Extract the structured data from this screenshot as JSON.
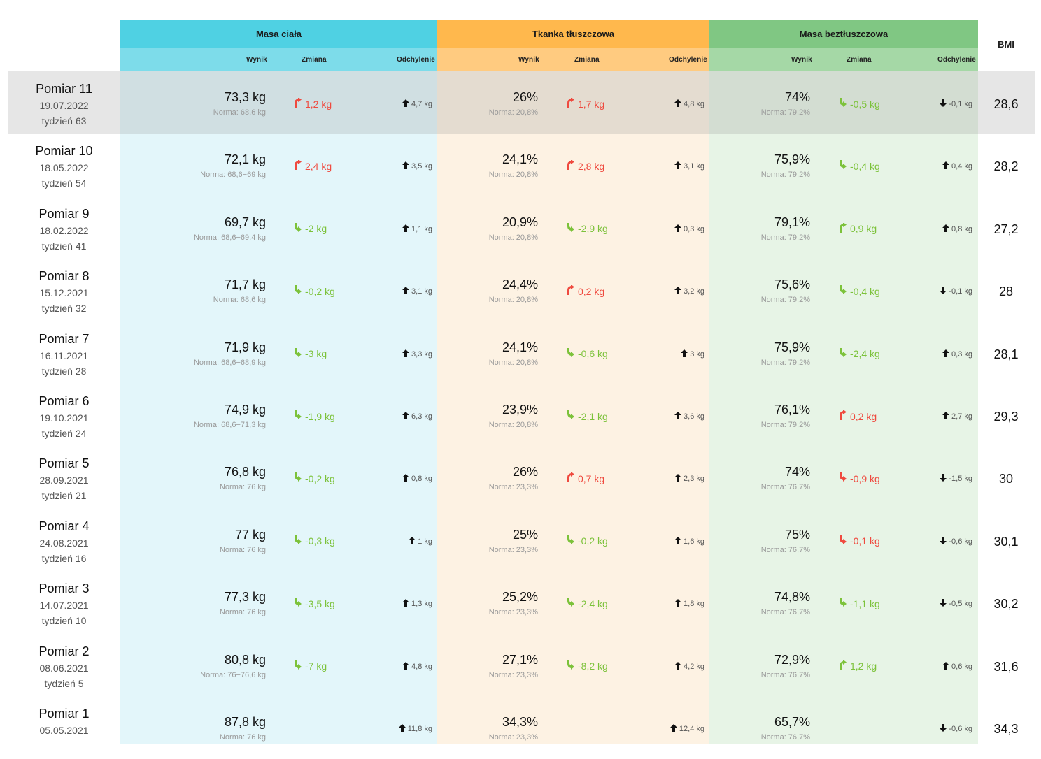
{
  "headers": {
    "body_mass": "Masa ciała",
    "fat_tissue": "Tkanka tłuszczowa",
    "lean_mass": "Masa beztłuszczowa",
    "bmi": "BMI",
    "result": "Wynik",
    "change": "Zmiana",
    "deviation": "Odchylenie"
  },
  "colors": {
    "blue_header": "#4fd1e3",
    "orange_header": "#ffb84d",
    "green_header": "#80c783",
    "change_bad": "#ef4a3f",
    "change_good": "#7cc23a"
  },
  "rows": [
    {
      "title": "Pomiar 11",
      "date": "19.07.2022",
      "week": "tydzień 63",
      "mass": {
        "value": "73,3 kg",
        "norm": "Norma: 68,6 kg",
        "change": "1,2 kg",
        "change_dir": "up",
        "change_tone": "bad",
        "dev": "4,7 kg",
        "dev_dir": "up"
      },
      "fat": {
        "value": "26%",
        "norm": "Norma: 20,8%",
        "change": "1,7 kg",
        "change_dir": "up",
        "change_tone": "bad",
        "dev": "4,8 kg",
        "dev_dir": "up"
      },
      "lean": {
        "value": "74%",
        "norm": "Norma: 79,2%",
        "change": "-0,5 kg",
        "change_dir": "down",
        "change_tone": "good",
        "dev": "-0,1 kg",
        "dev_dir": "down"
      },
      "bmi": "28,6"
    },
    {
      "title": "Pomiar 10",
      "date": "18.05.2022",
      "week": "tydzień 54",
      "mass": {
        "value": "72,1 kg",
        "norm": "Norma: 68,6−69 kg",
        "change": "2,4 kg",
        "change_dir": "up",
        "change_tone": "bad",
        "dev": "3,5 kg",
        "dev_dir": "up"
      },
      "fat": {
        "value": "24,1%",
        "norm": "Norma: 20,8%",
        "change": "2,8 kg",
        "change_dir": "up",
        "change_tone": "bad",
        "dev": "3,1 kg",
        "dev_dir": "up"
      },
      "lean": {
        "value": "75,9%",
        "norm": "Norma: 79,2%",
        "change": "-0,4 kg",
        "change_dir": "down",
        "change_tone": "good",
        "dev": "0,4 kg",
        "dev_dir": "up"
      },
      "bmi": "28,2"
    },
    {
      "title": "Pomiar 9",
      "date": "18.02.2022",
      "week": "tydzień 41",
      "mass": {
        "value": "69,7 kg",
        "norm": "Norma: 68,6−69,4 kg",
        "change": "-2 kg",
        "change_dir": "down",
        "change_tone": "good",
        "dev": "1,1 kg",
        "dev_dir": "up"
      },
      "fat": {
        "value": "20,9%",
        "norm": "Norma: 20,8%",
        "change": "-2,9 kg",
        "change_dir": "down",
        "change_tone": "good",
        "dev": "0,3 kg",
        "dev_dir": "up"
      },
      "lean": {
        "value": "79,1%",
        "norm": "Norma: 79,2%",
        "change": "0,9 kg",
        "change_dir": "up",
        "change_tone": "good",
        "dev": "0,8 kg",
        "dev_dir": "up"
      },
      "bmi": "27,2"
    },
    {
      "title": "Pomiar 8",
      "date": "15.12.2021",
      "week": "tydzień 32",
      "mass": {
        "value": "71,7 kg",
        "norm": "Norma: 68,6 kg",
        "change": "-0,2 kg",
        "change_dir": "down",
        "change_tone": "good",
        "dev": "3,1 kg",
        "dev_dir": "up"
      },
      "fat": {
        "value": "24,4%",
        "norm": "Norma: 20,8%",
        "change": "0,2 kg",
        "change_dir": "up",
        "change_tone": "bad",
        "dev": "3,2 kg",
        "dev_dir": "up"
      },
      "lean": {
        "value": "75,6%",
        "norm": "Norma: 79,2%",
        "change": "-0,4 kg",
        "change_dir": "down",
        "change_tone": "good",
        "dev": "-0,1 kg",
        "dev_dir": "down"
      },
      "bmi": "28"
    },
    {
      "title": "Pomiar 7",
      "date": "16.11.2021",
      "week": "tydzień 28",
      "mass": {
        "value": "71,9 kg",
        "norm": "Norma: 68,6−68,9 kg",
        "change": "-3 kg",
        "change_dir": "down",
        "change_tone": "good",
        "dev": "3,3 kg",
        "dev_dir": "up"
      },
      "fat": {
        "value": "24,1%",
        "norm": "Norma: 20,8%",
        "change": "-0,6 kg",
        "change_dir": "down",
        "change_tone": "good",
        "dev": "3 kg",
        "dev_dir": "up"
      },
      "lean": {
        "value": "75,9%",
        "norm": "Norma: 79,2%",
        "change": "-2,4 kg",
        "change_dir": "down",
        "change_tone": "good",
        "dev": "0,3 kg",
        "dev_dir": "up"
      },
      "bmi": "28,1"
    },
    {
      "title": "Pomiar 6",
      "date": "19.10.2021",
      "week": "tydzień 24",
      "mass": {
        "value": "74,9 kg",
        "norm": "Norma: 68,6−71,3 kg",
        "change": "-1,9 kg",
        "change_dir": "down",
        "change_tone": "good",
        "dev": "6,3 kg",
        "dev_dir": "up"
      },
      "fat": {
        "value": "23,9%",
        "norm": "Norma: 20,8%",
        "change": "-2,1 kg",
        "change_dir": "down",
        "change_tone": "good",
        "dev": "3,6 kg",
        "dev_dir": "up"
      },
      "lean": {
        "value": "76,1%",
        "norm": "Norma: 79,2%",
        "change": "0,2 kg",
        "change_dir": "up",
        "change_tone": "bad",
        "dev": "2,7 kg",
        "dev_dir": "up"
      },
      "bmi": "29,3"
    },
    {
      "title": "Pomiar 5",
      "date": "28.09.2021",
      "week": "tydzień 21",
      "mass": {
        "value": "76,8 kg",
        "norm": "Norma: 76 kg",
        "change": "-0,2 kg",
        "change_dir": "down",
        "change_tone": "good",
        "dev": "0,8 kg",
        "dev_dir": "up"
      },
      "fat": {
        "value": "26%",
        "norm": "Norma: 23,3%",
        "change": "0,7 kg",
        "change_dir": "up",
        "change_tone": "bad",
        "dev": "2,3 kg",
        "dev_dir": "up"
      },
      "lean": {
        "value": "74%",
        "norm": "Norma: 76,7%",
        "change": "-0,9 kg",
        "change_dir": "down",
        "change_tone": "bad",
        "dev": "-1,5 kg",
        "dev_dir": "down"
      },
      "bmi": "30"
    },
    {
      "title": "Pomiar 4",
      "date": "24.08.2021",
      "week": "tydzień 16",
      "mass": {
        "value": "77 kg",
        "norm": "Norma: 76 kg",
        "change": "-0,3 kg",
        "change_dir": "down",
        "change_tone": "good",
        "dev": "1 kg",
        "dev_dir": "up"
      },
      "fat": {
        "value": "25%",
        "norm": "Norma: 23,3%",
        "change": "-0,2 kg",
        "change_dir": "down",
        "change_tone": "good",
        "dev": "1,6 kg",
        "dev_dir": "up"
      },
      "lean": {
        "value": "75%",
        "norm": "Norma: 76,7%",
        "change": "-0,1 kg",
        "change_dir": "down",
        "change_tone": "bad",
        "dev": "-0,6 kg",
        "dev_dir": "down"
      },
      "bmi": "30,1"
    },
    {
      "title": "Pomiar 3",
      "date": "14.07.2021",
      "week": "tydzień 10",
      "mass": {
        "value": "77,3 kg",
        "norm": "Norma: 76 kg",
        "change": "-3,5 kg",
        "change_dir": "down",
        "change_tone": "good",
        "dev": "1,3 kg",
        "dev_dir": "up"
      },
      "fat": {
        "value": "25,2%",
        "norm": "Norma: 23,3%",
        "change": "-2,4 kg",
        "change_dir": "down",
        "change_tone": "good",
        "dev": "1,8 kg",
        "dev_dir": "up"
      },
      "lean": {
        "value": "74,8%",
        "norm": "Norma: 76,7%",
        "change": "-1,1 kg",
        "change_dir": "down",
        "change_tone": "good",
        "dev": "-0,5 kg",
        "dev_dir": "down"
      },
      "bmi": "30,2"
    },
    {
      "title": "Pomiar 2",
      "date": "08.06.2021",
      "week": "tydzień 5",
      "mass": {
        "value": "80,8 kg",
        "norm": "Norma: 76−76,6 kg",
        "change": "-7 kg",
        "change_dir": "down",
        "change_tone": "good",
        "dev": "4,8 kg",
        "dev_dir": "up"
      },
      "fat": {
        "value": "27,1%",
        "norm": "Norma: 23,3%",
        "change": "-8,2 kg",
        "change_dir": "down",
        "change_tone": "good",
        "dev": "4,2 kg",
        "dev_dir": "up"
      },
      "lean": {
        "value": "72,9%",
        "norm": "Norma: 76,7%",
        "change": "1,2 kg",
        "change_dir": "up",
        "change_tone": "good",
        "dev": "0,6 kg",
        "dev_dir": "up"
      },
      "bmi": "31,6"
    },
    {
      "title": "Pomiar 1",
      "date": "05.05.2021",
      "week": "",
      "mass": {
        "value": "87,8 kg",
        "norm": "Norma: 76 kg",
        "change": "",
        "change_dir": "",
        "change_tone": "",
        "dev": "11,8 kg",
        "dev_dir": "up"
      },
      "fat": {
        "value": "34,3%",
        "norm": "Norma: 23,3%",
        "change": "",
        "change_dir": "",
        "change_tone": "",
        "dev": "12,4 kg",
        "dev_dir": "up"
      },
      "lean": {
        "value": "65,7%",
        "norm": "Norma: 76,7%",
        "change": "",
        "change_dir": "",
        "change_tone": "",
        "dev": "-0,6 kg",
        "dev_dir": "down"
      },
      "bmi": "34,3"
    }
  ]
}
